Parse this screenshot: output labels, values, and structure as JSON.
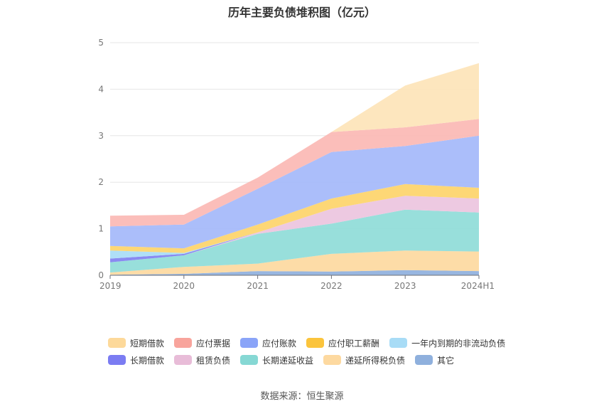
{
  "title": "历年主要负债堆积图（亿元）",
  "source": "数据来源：恒生聚源",
  "chart_data": {
    "type": "area",
    "stacked": true,
    "title": "历年主要负债堆积图（亿元）",
    "categories": [
      "2019",
      "2020",
      "2021",
      "2022",
      "2023",
      "2024H1"
    ],
    "ylim": [
      0,
      5
    ],
    "yticks": [
      "0",
      "1",
      "2",
      "3",
      "4",
      "5"
    ],
    "grid": true,
    "legend_position": "bottom",
    "series": [
      {
        "name": "其它",
        "color": "#8fb0dd",
        "values": [
          0.01,
          0.03,
          0.09,
          0.08,
          0.11,
          0.09
        ]
      },
      {
        "name": "递延所得税负债",
        "color": "#fdd9a0",
        "values": [
          0.05,
          0.15,
          0.16,
          0.38,
          0.42,
          0.42
        ]
      },
      {
        "name": "长期递延收益",
        "color": "#8fdcd8",
        "values": [
          0.22,
          0.25,
          0.64,
          0.65,
          0.88,
          0.84
        ]
      },
      {
        "name": "租赁负债",
        "color": "#ecc4de",
        "values": [
          0.0,
          0.0,
          0.03,
          0.32,
          0.3,
          0.3
        ]
      },
      {
        "name": "长期借款",
        "color": "#8080f0",
        "values": [
          0.08,
          0.03,
          0.0,
          0.0,
          0.0,
          0.0
        ]
      },
      {
        "name": "一年内到期的非流动负债",
        "color": "#a8dcf6",
        "values": [
          0.17,
          0.02,
          0.0,
          0.0,
          0.0,
          0.0
        ]
      },
      {
        "name": "应付职工薪酬",
        "color": "#fdd46a",
        "values": [
          0.1,
          0.1,
          0.17,
          0.22,
          0.25,
          0.23
        ]
      },
      {
        "name": "应付账款",
        "color": "#a4b8fa",
        "values": [
          0.42,
          0.51,
          0.77,
          1.0,
          0.82,
          1.12
        ]
      },
      {
        "name": "应付票据",
        "color": "#fbb8b4",
        "values": [
          0.23,
          0.21,
          0.24,
          0.43,
          0.4,
          0.36
        ]
      },
      {
        "name": "短期借款",
        "color": "#fde4b8",
        "values": [
          0.0,
          0.0,
          0.0,
          0.0,
          0.9,
          1.2
        ]
      }
    ]
  },
  "legend": {
    "rows": [
      [
        {
          "label": "短期借款",
          "color": "#fdd99a"
        },
        {
          "label": "应付票据",
          "color": "#f8a49c"
        },
        {
          "label": "应付账款",
          "color": "#8aa4f8"
        },
        {
          "label": "应付职工薪酬",
          "color": "#fbc43c"
        },
        {
          "label": "一年内到期的非流动负债",
          "color": "#a8dcf6"
        }
      ],
      [
        {
          "label": "长期借款",
          "color": "#7b7cf2"
        },
        {
          "label": "租赁负债",
          "color": "#e8bcd8"
        },
        {
          "label": "长期递延收益",
          "color": "#86d8d4"
        },
        {
          "label": "递延所得税负债",
          "color": "#fdd9a0"
        },
        {
          "label": "其它",
          "color": "#8fb0dd"
        }
      ]
    ]
  }
}
